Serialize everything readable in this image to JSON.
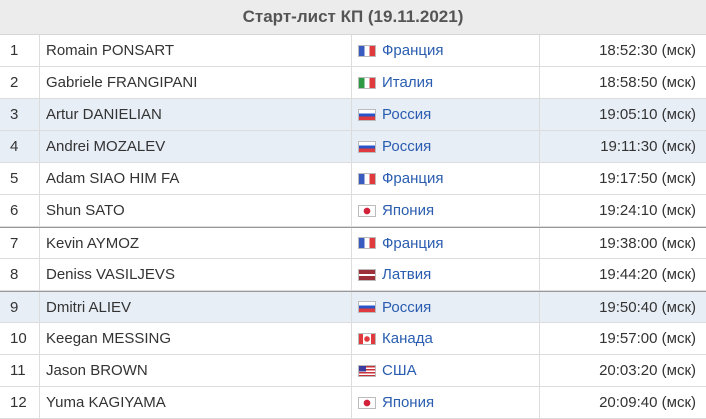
{
  "title": "Старт-лист КП (19.11.2021)",
  "rows": [
    [
      "1",
      "Romain PONSART",
      "Франция",
      "18:52:30 (мск)"
    ],
    [
      "2",
      "Gabriele FRANGIPANI",
      "Италия",
      "18:58:50 (мск)"
    ],
    [
      "3",
      "Artur DANIELIAN",
      "Россия",
      "19:05:10 (мск)"
    ],
    [
      "4",
      "Andrei MOZALEV",
      "Россия",
      "19:11:30 (мск)"
    ],
    [
      "5",
      "Adam SIAO HIM FA",
      "Франция",
      "19:17:50 (мск)"
    ],
    [
      "6",
      "Shun SATO",
      "Япония",
      "19:24:10 (мск)"
    ],
    [
      "7",
      "Kevin AYMOZ",
      "Франция",
      "19:38:00 (мск)"
    ],
    [
      "8",
      "Deniss VASILJEVS",
      "Латвия",
      "19:44:20 (мск)"
    ],
    [
      "9",
      "Dmitri ALIEV",
      "Россия",
      "19:50:40 (мск)"
    ],
    [
      "10",
      "Keegan MESSING",
      "Канада",
      "19:57:00 (мск)"
    ],
    [
      "11",
      "Jason BROWN",
      "США",
      "20:03:20 (мск)"
    ],
    [
      "12",
      "Yuma KAGIYAMA",
      "Япония",
      "20:09:40 (мск)"
    ]
  ]
}
